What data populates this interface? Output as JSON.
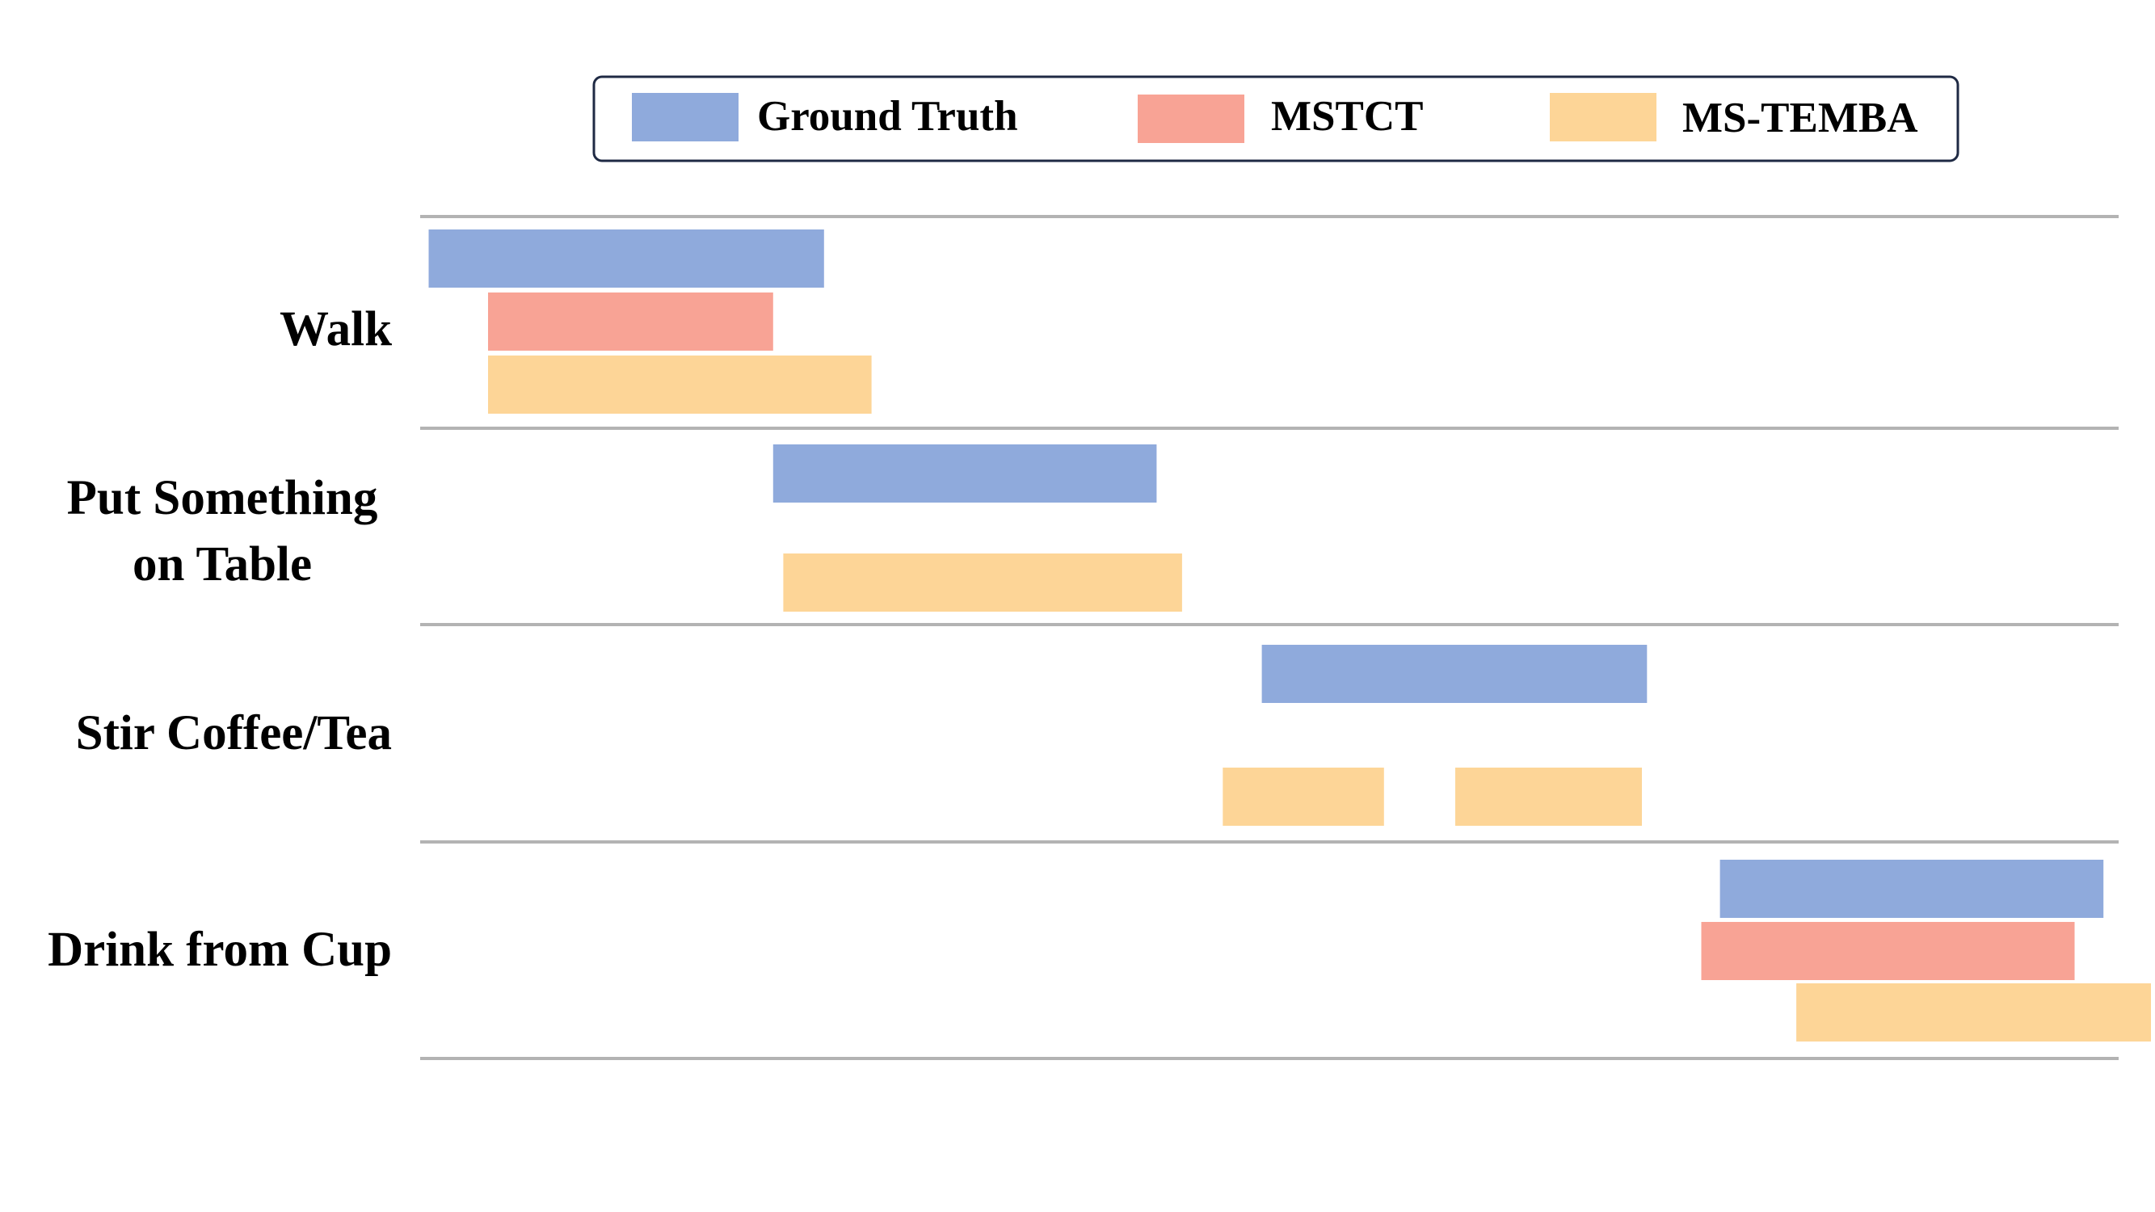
{
  "chart_data": {
    "type": "bar",
    "title": "",
    "xlabel": "",
    "ylabel": "",
    "xlim": [
      0,
      100
    ],
    "grid": false,
    "legend_position": "top",
    "categories": [
      [
        "Walk"
      ],
      [
        "Put Something",
        "on Table"
      ],
      [
        "Stir Coffee/Tea"
      ],
      [
        "Drink from Cup"
      ]
    ],
    "series": [
      {
        "name": "Ground Truth",
        "color": "#8FAADC",
        "segments": [
          {
            "category": 0,
            "start": 0.5,
            "end": 23.8
          },
          {
            "category": 1,
            "start": 20.8,
            "end": 43.4
          },
          {
            "category": 2,
            "start": 49.6,
            "end": 72.3
          },
          {
            "category": 3,
            "start": 76.6,
            "end": 99.2
          }
        ]
      },
      {
        "name": "MSTCT",
        "color": "#F8A395",
        "segments": [
          {
            "category": 0,
            "start": 4.0,
            "end": 20.8
          },
          {
            "category": 3,
            "start": 75.5,
            "end": 97.5
          }
        ]
      },
      {
        "name": "MS-TEMBA",
        "color": "#FDD597",
        "segments": [
          {
            "category": 0,
            "start": 4.0,
            "end": 26.6
          },
          {
            "category": 1,
            "start": 21.4,
            "end": 44.9
          },
          {
            "category": 2,
            "start": 47.3,
            "end": 56.8
          },
          {
            "category": 2,
            "start": 61.0,
            "end": 72.0
          },
          {
            "category": 3,
            "start": 81.1,
            "end": 102.0
          }
        ]
      }
    ]
  }
}
